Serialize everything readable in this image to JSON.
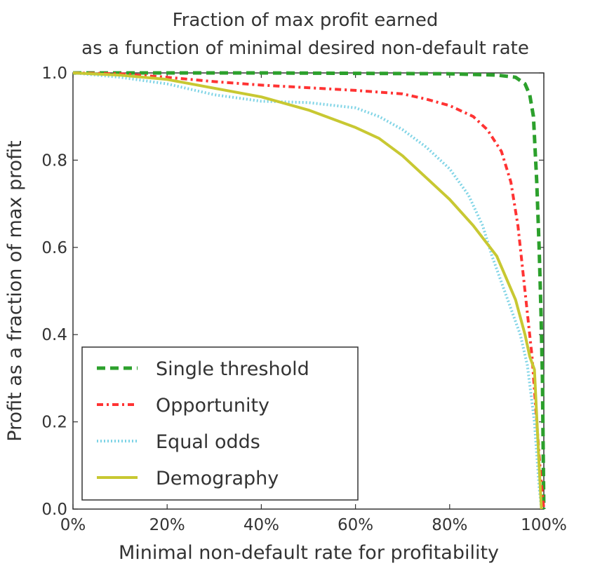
{
  "chart_data": {
    "type": "line",
    "title_lines": [
      "Fraction of max profit earned",
      "as a function of minimal desired non-default rate"
    ],
    "xlabel": "Minimal non-default rate for profitability",
    "ylabel": "Profit as a fraction of max profit",
    "xlim": [
      0,
      100
    ],
    "ylim": [
      0,
      1.0
    ],
    "x_ticks": [
      {
        "value": 0,
        "label": "0%"
      },
      {
        "value": 20,
        "label": "20%"
      },
      {
        "value": 40,
        "label": "40%"
      },
      {
        "value": 60,
        "label": "60%"
      },
      {
        "value": 80,
        "label": "80%"
      },
      {
        "value": 100,
        "label": "100%"
      }
    ],
    "y_ticks": [
      {
        "value": 0.0,
        "label": "0.0"
      },
      {
        "value": 0.2,
        "label": "0.2"
      },
      {
        "value": 0.4,
        "label": "0.4"
      },
      {
        "value": 0.6,
        "label": "0.6"
      },
      {
        "value": 0.8,
        "label": "0.8"
      },
      {
        "value": 1.0,
        "label": "1.0"
      }
    ],
    "grid": false,
    "legend_position": "lower-left",
    "series": [
      {
        "name": "Single threshold",
        "color": "#2ca02c",
        "style": "dashed",
        "points": [
          [
            0,
            1.0
          ],
          [
            20,
            1.0
          ],
          [
            40,
            1.0
          ],
          [
            60,
            0.999
          ],
          [
            80,
            0.998
          ],
          [
            90,
            0.995
          ],
          [
            94,
            0.99
          ],
          [
            96,
            0.975
          ],
          [
            97,
            0.95
          ],
          [
            97.8,
            0.9
          ],
          [
            98.5,
            0.75
          ],
          [
            99,
            0.6
          ],
          [
            99.4,
            0.45
          ],
          [
            99.7,
            0.3
          ],
          [
            99.9,
            0.1
          ],
          [
            100,
            0.0
          ]
        ]
      },
      {
        "name": "Opportunity",
        "color": "#ff3333",
        "style": "dash-dot",
        "points": [
          [
            0,
            1.0
          ],
          [
            10,
            0.998
          ],
          [
            20,
            0.99
          ],
          [
            30,
            0.98
          ],
          [
            40,
            0.972
          ],
          [
            50,
            0.966
          ],
          [
            60,
            0.96
          ],
          [
            70,
            0.952
          ],
          [
            75,
            0.94
          ],
          [
            80,
            0.925
          ],
          [
            85,
            0.9
          ],
          [
            88,
            0.87
          ],
          [
            91,
            0.82
          ],
          [
            93,
            0.75
          ],
          [
            94.5,
            0.65
          ],
          [
            95.5,
            0.55
          ],
          [
            96.5,
            0.45
          ],
          [
            97.5,
            0.35
          ],
          [
            98.5,
            0.2
          ],
          [
            99.3,
            0.08
          ],
          [
            100,
            0.0
          ]
        ]
      },
      {
        "name": "Equal odds",
        "color": "#7fd4e6",
        "style": "dotted",
        "points": [
          [
            0,
            1.0
          ],
          [
            10,
            0.99
          ],
          [
            20,
            0.975
          ],
          [
            30,
            0.95
          ],
          [
            40,
            0.935
          ],
          [
            50,
            0.932
          ],
          [
            60,
            0.92
          ],
          [
            65,
            0.9
          ],
          [
            70,
            0.87
          ],
          [
            75,
            0.83
          ],
          [
            80,
            0.78
          ],
          [
            84,
            0.72
          ],
          [
            87,
            0.65
          ],
          [
            89,
            0.58
          ],
          [
            91,
            0.52
          ],
          [
            93,
            0.46
          ],
          [
            95,
            0.4
          ],
          [
            96.5,
            0.33
          ],
          [
            98,
            0.2
          ],
          [
            99,
            0.05
          ],
          [
            99.5,
            0.0
          ]
        ]
      },
      {
        "name": "Demography",
        "color": "#c8c832",
        "style": "solid",
        "points": [
          [
            0,
            1.0
          ],
          [
            10,
            0.995
          ],
          [
            20,
            0.985
          ],
          [
            30,
            0.965
          ],
          [
            40,
            0.945
          ],
          [
            50,
            0.915
          ],
          [
            60,
            0.875
          ],
          [
            65,
            0.85
          ],
          [
            70,
            0.81
          ],
          [
            75,
            0.76
          ],
          [
            80,
            0.71
          ],
          [
            85,
            0.65
          ],
          [
            90,
            0.58
          ],
          [
            92,
            0.53
          ],
          [
            94,
            0.48
          ],
          [
            96,
            0.4
          ],
          [
            97,
            0.35
          ],
          [
            98,
            0.32
          ],
          [
            99,
            0.1
          ],
          [
            99.5,
            0.0
          ]
        ]
      }
    ]
  }
}
